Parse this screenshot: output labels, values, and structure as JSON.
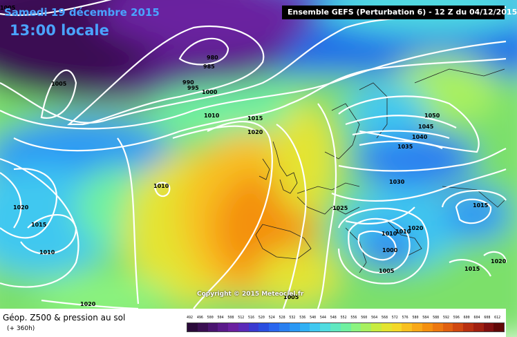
{
  "header": {
    "date": "Samedi 19 décembre 2015",
    "time": "13:00 locale",
    "run_info": "Ensemble GEFS  (Perturbation 6)  - 12 Z du 04/12/2015"
  },
  "copyright": "Copyright © 2015 Meteociel.fr",
  "footer": {
    "title": "Géop. Z500 & pression au sol",
    "lead": "(+ 360h)"
  },
  "scale": {
    "values": [
      "492",
      "496",
      "500",
      "504",
      "508",
      "512",
      "516",
      "520",
      "524",
      "528",
      "532",
      "536",
      "540",
      "544",
      "548",
      "552",
      "556",
      "560",
      "564",
      "568",
      "572",
      "576",
      "580",
      "584",
      "588",
      "592",
      "596",
      "600",
      "604",
      "608",
      "612"
    ],
    "colors": [
      "#2a0a3a",
      "#3a0f52",
      "#4a1470",
      "#5a1a8a",
      "#6a20a0",
      "#5a2ab8",
      "#3a3ad0",
      "#2a4ee0",
      "#2a66ee",
      "#2a80f0",
      "#2a98f4",
      "#30b0f4",
      "#40c8f0",
      "#50dce0",
      "#60e8c0",
      "#70f0a0",
      "#8cf480",
      "#a8f060",
      "#c8ec40",
      "#e4e430",
      "#f4d828",
      "#f8c020",
      "#f8a818",
      "#f49010",
      "#ec7810",
      "#e06010",
      "#d04810",
      "#b83010",
      "#a02010",
      "#801010",
      "#600808"
    ]
  },
  "isobars": [
    {
      "label": "1005"
    },
    {
      "label": "980"
    },
    {
      "label": "985"
    },
    {
      "label": "990"
    },
    {
      "label": "995"
    },
    {
      "label": "1000"
    },
    {
      "label": "1005"
    },
    {
      "label": "1010"
    },
    {
      "label": "1015"
    },
    {
      "label": "1020"
    },
    {
      "label": "1010"
    },
    {
      "label": "1020"
    },
    {
      "label": "1015"
    },
    {
      "label": "1010"
    },
    {
      "label": "1050"
    },
    {
      "label": "1045"
    },
    {
      "label": "1040"
    },
    {
      "label": "1035"
    },
    {
      "label": "1030"
    },
    {
      "label": "1025"
    },
    {
      "label": "1015"
    },
    {
      "label": "1020"
    },
    {
      "label": "1010"
    },
    {
      "label": "1010"
    },
    {
      "label": "1000"
    },
    {
      "label": "1005"
    },
    {
      "label": "1015"
    },
    {
      "label": "1020"
    },
    {
      "label": "1020"
    },
    {
      "label": "1005"
    }
  ]
}
